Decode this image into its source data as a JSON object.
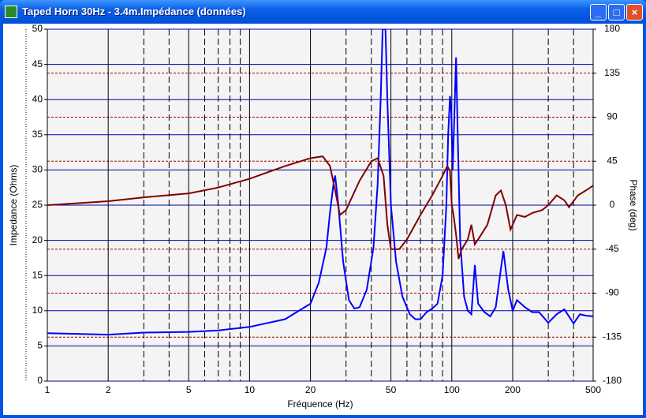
{
  "window": {
    "title": "Taped Horn 30Hz - 3.4m.Impédance (données)"
  },
  "chart_data": {
    "type": "line",
    "xlabel": "Fréquence (Hz)",
    "ylabel": "Impedance (Ohms)",
    "y2label": "Phase (deg)",
    "xscale": "log",
    "xlim": [
      1,
      500
    ],
    "xticks": [
      1,
      2,
      5,
      10,
      20,
      50,
      100,
      200,
      500
    ],
    "xminor": [
      3,
      4,
      6,
      7,
      8,
      9,
      30,
      40,
      60,
      70,
      80,
      90,
      300,
      400
    ],
    "ylim": [
      0,
      50
    ],
    "yticks": [
      0,
      5,
      10,
      15,
      20,
      25,
      30,
      35,
      40,
      45,
      50
    ],
    "y2lim": [
      -180,
      180
    ],
    "y2ticks": [
      -180,
      -135,
      -90,
      -45,
      0,
      45,
      90,
      135,
      180
    ],
    "grid": true,
    "series": [
      {
        "name": "Impedance",
        "color": "#0000ff",
        "x": [
          1,
          2,
          3,
          5,
          7,
          10,
          15,
          20,
          22,
          24,
          25,
          26,
          26.5,
          27.5,
          29,
          31,
          33,
          35,
          38,
          41,
          43,
          44.5,
          45.5,
          47,
          48,
          50,
          53,
          57,
          62,
          66,
          70,
          75,
          80,
          85,
          90,
          94,
          96,
          98,
          99.5,
          101,
          103,
          105,
          107,
          110,
          115,
          120,
          125,
          130,
          135,
          145,
          155,
          165,
          175,
          180,
          190,
          200,
          210,
          230,
          250,
          270,
          300,
          330,
          360,
          400,
          430,
          460,
          500
        ],
        "values": [
          6.8,
          6.6,
          6.9,
          7.0,
          7.2,
          7.7,
          8.8,
          11,
          14,
          19,
          24,
          28,
          29.2,
          25,
          17,
          11.5,
          10.3,
          10.5,
          13,
          19,
          28,
          40,
          50,
          50,
          40,
          25,
          17,
          12,
          9.5,
          8.8,
          8.8,
          9.8,
          10.3,
          11,
          15,
          25,
          35,
          40.5,
          38,
          30,
          38,
          46,
          35,
          20,
          12,
          10,
          9.5,
          16.5,
          11,
          9.8,
          9.2,
          10.5,
          16,
          18.5,
          13,
          10,
          11.5,
          10.5,
          9.8,
          9.8,
          8.3,
          9.5,
          10.2,
          8.2,
          9.5,
          9.3,
          9.2
        ]
      },
      {
        "name": "Phase",
        "color": "#800000",
        "axis": "y2",
        "x": [
          1,
          2,
          3,
          5,
          7,
          10,
          15,
          20,
          23,
          25,
          26.5,
          28,
          30,
          35,
          40,
          43,
          46,
          48,
          50,
          55,
          60,
          70,
          80,
          90,
          95,
          98,
          100,
          102,
          105,
          108,
          112,
          120,
          125,
          130,
          135,
          150,
          165,
          175,
          185,
          195,
          200,
          210,
          230,
          250,
          280,
          300,
          330,
          360,
          380,
          420,
          460,
          500
        ],
        "values": [
          0,
          4,
          8,
          12,
          18,
          27,
          40,
          48,
          50,
          40,
          15,
          -10,
          -5,
          25,
          45,
          48,
          30,
          -20,
          -45,
          -45,
          -35,
          -10,
          10,
          30,
          40,
          35,
          0,
          -10,
          -30,
          -55,
          -45,
          -35,
          -20,
          -40,
          -35,
          -20,
          10,
          15,
          0,
          -25,
          -20,
          -10,
          -12,
          -8,
          -5,
          0,
          10,
          5,
          -2,
          10,
          15,
          20
        ]
      }
    ]
  }
}
